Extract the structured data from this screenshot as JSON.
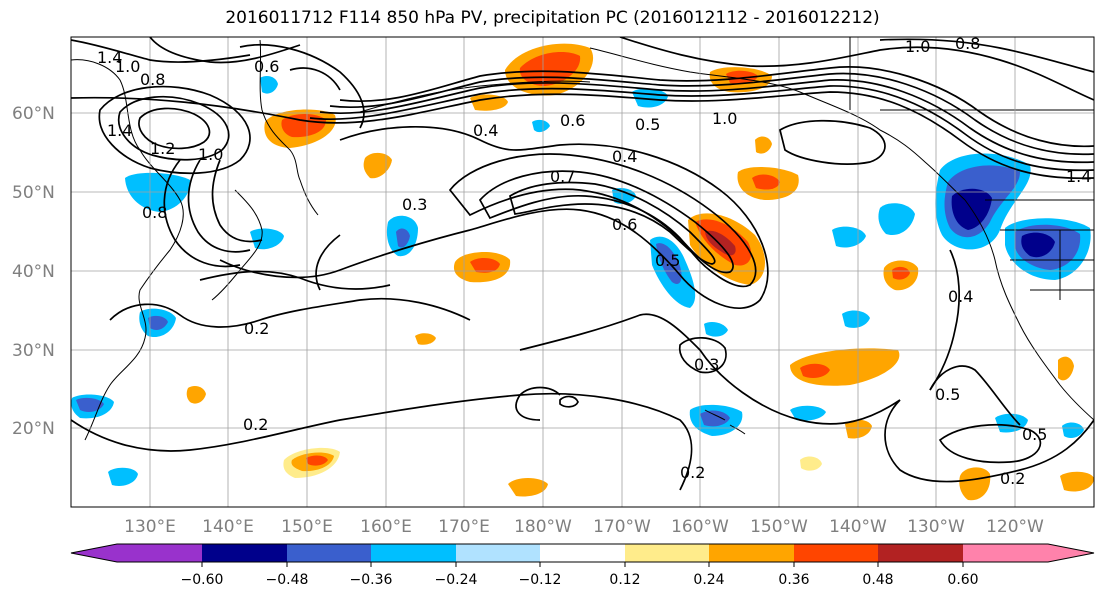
{
  "title": "2016011712 F114 850 hPa PV, precipitation PC (2016012112 - 2016012212)",
  "lat_labels": [
    "60°N",
    "50°N",
    "40°N",
    "30°N",
    "20°N"
  ],
  "lon_labels": [
    "130°E",
    "140°E",
    "150°E",
    "160°E",
    "170°E",
    "180°W",
    "170°W",
    "160°W",
    "150°W",
    "140°W",
    "130°W",
    "120°W"
  ],
  "contour_labels": [
    "1.4",
    "1.0",
    "0.8",
    "0.6",
    "1.4",
    "1.2",
    "1.0",
    "0.8",
    "0.4",
    "0.6",
    "0.5",
    "1.0",
    "0.4",
    "0.7",
    "0.3",
    "0.6",
    "0.5",
    "0.2",
    "0.3",
    "0.2",
    "0.2",
    "0.5",
    "0.5",
    "0.2",
    "0.4",
    "1.4",
    "0.8",
    "1.0"
  ],
  "colorbar": {
    "ticks": [
      "−0.60",
      "−0.48",
      "−0.36",
      "−0.24",
      "−0.12",
      "0.12",
      "0.24",
      "0.36",
      "0.48",
      "0.60"
    ],
    "colors": [
      "#9932cc",
      "#00008b",
      "#3a5fcd",
      "#00bfff",
      "#b0e2ff",
      "#ffffff",
      "#ffec8b",
      "#ffa500",
      "#ff4500",
      "#b22222",
      "#ff82ab"
    ]
  },
  "colors": {
    "neg_strong": "#00008b",
    "neg_mid": "#3a5fcd",
    "neg_light": "#00bfff",
    "pos_light": "#ffec8b",
    "pos_mid": "#ffa500",
    "pos_strong": "#ff4500",
    "pos_dark": "#b22222"
  }
}
